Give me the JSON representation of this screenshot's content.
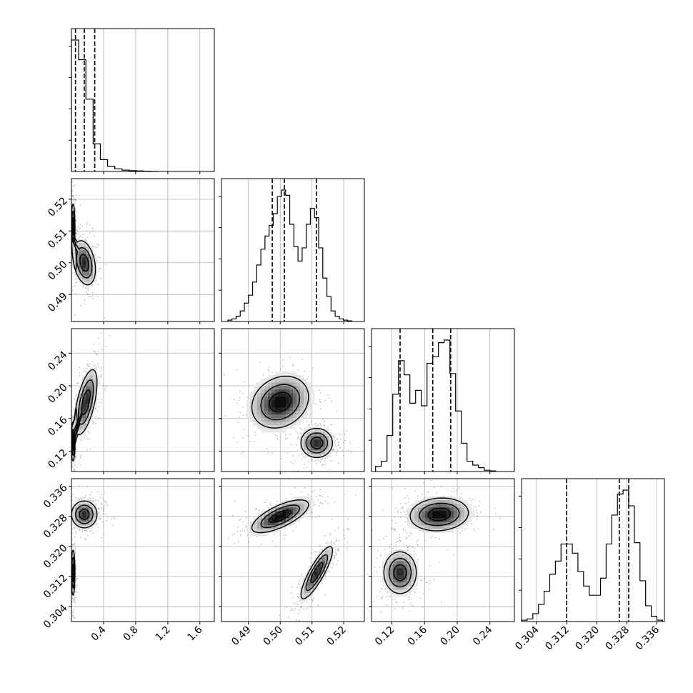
{
  "chart_data": {
    "type": "corner",
    "colors": {
      "line": "#000000",
      "grid": "#b0b0b0",
      "scatter": "#4d4d4d",
      "background": "#ffffff"
    },
    "grid": true,
    "parameters": [
      {
        "index": 0,
        "range": [
          0.0,
          1.78
        ],
        "ticks": [
          0.4,
          0.8,
          1.2,
          1.6
        ],
        "tick_labels": [
          "0.4",
          "0.8",
          "1.2",
          "1.6"
        ],
        "quantiles": [
          0.05,
          0.16,
          0.29
        ]
      },
      {
        "index": 1,
        "range": [
          0.4815,
          0.5265
        ],
        "ticks": [
          0.49,
          0.5,
          0.51,
          0.52
        ],
        "tick_labels": [
          "0.49",
          "0.50",
          "0.51",
          "0.52"
        ],
        "quantiles": [
          0.4975,
          0.5013,
          0.5114
        ]
      },
      {
        "index": 2,
        "range": [
          0.095,
          0.27
        ],
        "ticks": [
          0.12,
          0.16,
          0.2,
          0.24
        ],
        "tick_labels": [
          "0.12",
          "0.16",
          "0.20",
          "0.24"
        ],
        "quantiles": [
          0.13,
          0.17,
          0.192
        ]
      },
      {
        "index": 3,
        "range": [
          0.3,
          0.338
        ],
        "ticks": [
          0.304,
          0.312,
          0.32,
          0.328,
          0.336
        ],
        "tick_labels": [
          "0.304",
          "0.312",
          "0.320",
          "0.328",
          "0.336"
        ],
        "quantiles": [
          0.312,
          0.326,
          0.3285
        ]
      }
    ],
    "histograms": [
      {
        "param": 0,
        "edges": [
          0.0,
          0.09,
          0.18,
          0.27,
          0.36,
          0.45,
          0.54,
          0.63,
          0.72,
          0.81,
          0.9,
          0.99,
          1.08
        ],
        "counts": [
          1.0,
          0.85,
          0.55,
          0.21,
          0.09,
          0.04,
          0.02,
          0.01,
          0.006,
          0.004,
          0.002,
          0.001
        ]
      },
      {
        "param": 1,
        "edges": [
          0.4835,
          0.4848,
          0.4861,
          0.4874,
          0.4887,
          0.49,
          0.4913,
          0.4926,
          0.4939,
          0.4952,
          0.4965,
          0.4978,
          0.4991,
          0.5004,
          0.5017,
          0.503,
          0.5043,
          0.5056,
          0.5069,
          0.5082,
          0.5095,
          0.5108,
          0.5121,
          0.5134,
          0.5147,
          0.516,
          0.5173,
          0.5186,
          0.5199,
          0.5212,
          0.5225
        ],
        "counts": [
          0.01,
          0.02,
          0.04,
          0.08,
          0.14,
          0.2,
          0.3,
          0.43,
          0.55,
          0.65,
          0.73,
          0.82,
          0.95,
          1.0,
          0.96,
          0.74,
          0.57,
          0.46,
          0.56,
          0.74,
          0.86,
          0.79,
          0.56,
          0.33,
          0.19,
          0.08,
          0.04,
          0.02,
          0.01,
          0.005
        ]
      },
      {
        "param": 2,
        "edges": [
          0.1,
          0.107,
          0.114,
          0.121,
          0.128,
          0.135,
          0.142,
          0.149,
          0.156,
          0.163,
          0.17,
          0.177,
          0.184,
          0.191,
          0.198,
          0.205,
          0.212,
          0.219,
          0.226,
          0.233,
          0.24,
          0.247
        ],
        "counts": [
          0.04,
          0.08,
          0.28,
          0.6,
          0.86,
          0.75,
          0.53,
          0.63,
          0.51,
          0.84,
          0.89,
          1.0,
          1.02,
          0.76,
          0.47,
          0.22,
          0.08,
          0.05,
          0.03,
          0.01,
          0.005
        ]
      },
      {
        "param": 3,
        "edges": [
          0.3,
          0.3015,
          0.303,
          0.3045,
          0.306,
          0.3075,
          0.309,
          0.3105,
          0.312,
          0.3135,
          0.315,
          0.3165,
          0.318,
          0.3195,
          0.321,
          0.3225,
          0.324,
          0.3255,
          0.327,
          0.3285,
          0.33,
          0.3315,
          0.333,
          0.3345,
          0.336,
          0.3375
        ],
        "counts": [
          0.01,
          0.02,
          0.06,
          0.13,
          0.23,
          0.36,
          0.46,
          0.59,
          0.59,
          0.52,
          0.38,
          0.27,
          0.2,
          0.2,
          0.33,
          0.59,
          0.81,
          0.97,
          1.0,
          0.88,
          0.6,
          0.31,
          0.12,
          0.04,
          0.01
        ]
      }
    ],
    "pairs": [
      {
        "x": 0,
        "y": 1,
        "blobs": [
          {
            "cx": 0.02,
            "cy": 0.5115,
            "sx": 0.012,
            "sy": 0.0035,
            "rho": 0.0,
            "w": 1.0
          },
          {
            "cx": 0.16,
            "cy": 0.5,
            "sx": 0.07,
            "sy": 0.0035,
            "rho": -0.3,
            "w": 1.0
          }
        ]
      },
      {
        "x": 0,
        "y": 2,
        "blobs": [
          {
            "cx": 0.02,
            "cy": 0.13,
            "sx": 0.012,
            "sy": 0.011,
            "rho": 0.0,
            "w": 0.9
          },
          {
            "cx": 0.18,
            "cy": 0.18,
            "sx": 0.07,
            "sy": 0.02,
            "rho": 0.6,
            "w": 1.0
          }
        ]
      },
      {
        "x": 0,
        "y": 3,
        "blobs": [
          {
            "cx": 0.02,
            "cy": 0.313,
            "sx": 0.012,
            "sy": 0.003,
            "rho": 0.0,
            "w": 1.0
          },
          {
            "cx": 0.16,
            "cy": 0.3285,
            "sx": 0.08,
            "sy": 0.0018,
            "rho": 0.0,
            "w": 1.0
          }
        ]
      },
      {
        "x": 1,
        "y": 2,
        "blobs": [
          {
            "cx": 0.5,
            "cy": 0.18,
            "sx": 0.0045,
            "sy": 0.016,
            "rho": 0.2,
            "w": 1.2
          },
          {
            "cx": 0.5115,
            "cy": 0.13,
            "sx": 0.0025,
            "sy": 0.009,
            "rho": 0.0,
            "w": 1.0
          }
        ]
      },
      {
        "x": 1,
        "y": 3,
        "blobs": [
          {
            "cx": 0.5,
            "cy": 0.328,
            "sx": 0.0045,
            "sy": 0.0022,
            "rho": 0.7,
            "w": 1.2
          },
          {
            "cx": 0.5115,
            "cy": 0.313,
            "sx": 0.0025,
            "sy": 0.0035,
            "rho": 0.85,
            "w": 1.0
          }
        ]
      },
      {
        "x": 2,
        "y": 3,
        "blobs": [
          {
            "cx": 0.178,
            "cy": 0.3285,
            "sx": 0.018,
            "sy": 0.0022,
            "rho": 0.1,
            "w": 1.2
          },
          {
            "cx": 0.13,
            "cy": 0.313,
            "sx": 0.01,
            "sy": 0.0028,
            "rho": 0.0,
            "w": 1.0
          }
        ]
      }
    ]
  }
}
